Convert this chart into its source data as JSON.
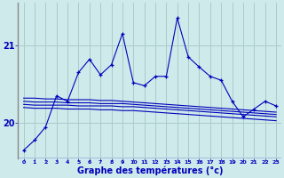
{
  "xlabel": "Graphe des températures (°c)",
  "background_color": "#ceeaea",
  "grid_color": "#aacccc",
  "line_color": "#0000bb",
  "x_ticks": [
    0,
    1,
    2,
    3,
    4,
    5,
    6,
    7,
    8,
    9,
    10,
    11,
    12,
    13,
    14,
    15,
    16,
    17,
    18,
    19,
    20,
    21,
    22,
    23
  ],
  "ylim": [
    19.55,
    21.55
  ],
  "yticks": [
    20,
    21
  ],
  "main_series": [
    19.65,
    19.78,
    19.95,
    20.35,
    20.28,
    20.65,
    20.82,
    20.62,
    20.75,
    21.15,
    20.52,
    20.48,
    20.6,
    20.6,
    21.35,
    20.85,
    20.72,
    20.6,
    20.55,
    20.28,
    20.08,
    20.18,
    20.28,
    20.22
  ],
  "smooth1": [
    20.32,
    20.32,
    20.31,
    20.31,
    20.3,
    20.3,
    20.3,
    20.29,
    20.29,
    20.28,
    20.27,
    20.26,
    20.25,
    20.24,
    20.23,
    20.22,
    20.21,
    20.2,
    20.19,
    20.18,
    20.17,
    20.16,
    20.15,
    20.14
  ],
  "smooth2": [
    20.28,
    20.27,
    20.27,
    20.27,
    20.26,
    20.26,
    20.26,
    20.25,
    20.25,
    20.25,
    20.24,
    20.23,
    20.22,
    20.21,
    20.2,
    20.19,
    20.18,
    20.17,
    20.16,
    20.15,
    20.14,
    20.13,
    20.12,
    20.11
  ],
  "smooth3": [
    20.24,
    20.23,
    20.23,
    20.23,
    20.23,
    20.22,
    20.22,
    20.22,
    20.22,
    20.21,
    20.21,
    20.2,
    20.19,
    20.18,
    20.17,
    20.16,
    20.15,
    20.14,
    20.13,
    20.12,
    20.11,
    20.1,
    20.09,
    20.08
  ],
  "smooth4": [
    20.2,
    20.19,
    20.19,
    20.19,
    20.18,
    20.18,
    20.18,
    20.17,
    20.17,
    20.16,
    20.16,
    20.15,
    20.14,
    20.13,
    20.12,
    20.11,
    20.1,
    20.09,
    20.08,
    20.07,
    20.06,
    20.05,
    20.04,
    20.03
  ]
}
